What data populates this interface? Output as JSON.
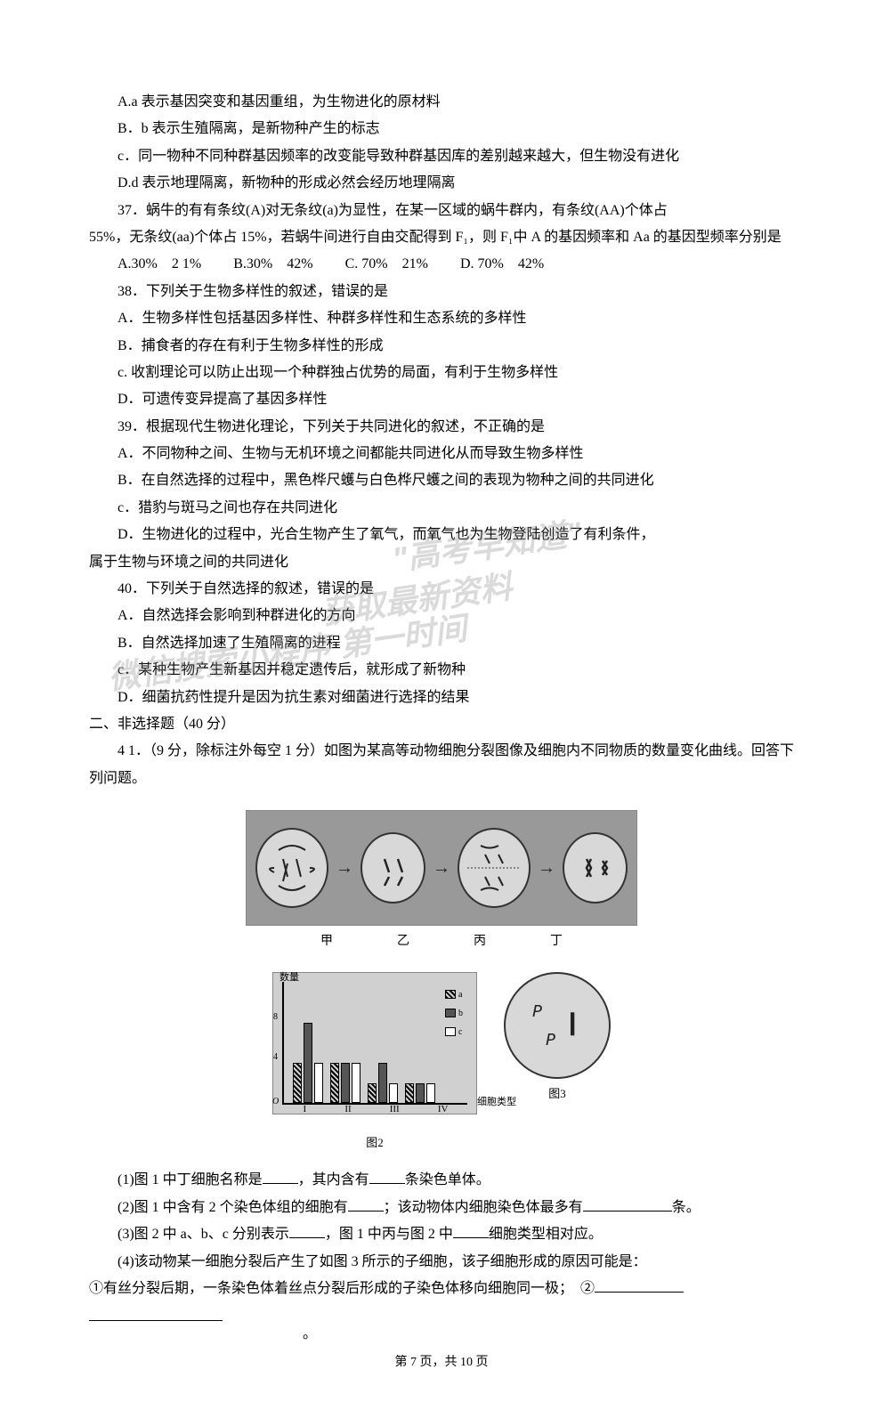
{
  "q36": {
    "optA": "A.a 表示基因突变和基因重组，为生物进化的原材料",
    "optB": "B．b 表示生殖隔离，是新物种产生的标志",
    "optC": "c．同一物种不同种群基因频率的改变能导致种群基因库的差别越来越大，但生物没有进化",
    "optD": "D.d 表示地理隔离，新物种的形成必然会经历地理隔离"
  },
  "q37": {
    "stem1": "37．蜗牛的有有条纹(A)对无条纹(a)为显性，在某一区域的蜗牛群内，有条纹(AA)个体占",
    "stem2": "55%，无条纹(aa)个体占 15%，若蜗牛间进行自由交配得到 F₁，则 F₁中 A 的基因频率和 Aa 的基因型频率分别是",
    "optA": "A.30%　2 1%",
    "optB": "B.30%　42%",
    "optC": "C. 70%　21%",
    "optD": "D. 70%　42%"
  },
  "q38": {
    "stem": "38．下列关于生物多样性的叙述，错误的是",
    "optA": "A．生物多样性包括基因多样性、种群多样性和生态系统的多样性",
    "optB": "B．捕食者的存在有利于生物多样性的形成",
    "optC": "c. 收割理论可以防止出现一个种群独占优势的局面，有利于生物多样性",
    "optD": "D．可遗传变异提高了基因多样性"
  },
  "q39": {
    "stem": "39．根据现代生物进化理论，下列关于共同进化的叙述，不正确的是",
    "optA": "A．不同物种之间、生物与无机环境之间都能共同进化从而导致生物多样性",
    "optB": "B．在自然选择的过程中，黑色桦尺蠖与白色桦尺蠖之间的表现为物种之间的共同进化",
    "optC": "c．猎豹与斑马之间也存在共同进化",
    "optD": "D．生物进化的过程中，光合生物产生了氧气，而氧气也为生物登陆创造了有利条件，",
    "optD2": "属于生物与环境之间的共同进化"
  },
  "q40": {
    "stem": "40．下列关于自然选择的叙述，错误的是",
    "optA": "A．自然选择会影响到种群进化的方向",
    "optB": "B．自然选择加速了生殖隔离的进程",
    "optC": "c．某种生物产生新基因并稳定遗传后，就形成了新物种",
    "optD": "D．细菌抗药性提升是因为抗生素对细菌进行选择的结果"
  },
  "section2": "二、非选择题（40 分）",
  "q41": {
    "stem1": "4 1．（9 分，除标注外每空 1 分）如图为某高等动物细胞分裂图像及细胞内不同物质的数量变化曲线。回答下列问题。",
    "cells": {
      "jia": "甲",
      "yi": "乙",
      "bing": "丙",
      "ding": "丁"
    },
    "chart": {
      "ylabel": "数量",
      "ytick8": "8",
      "ytick4": "4",
      "ytick0": "O",
      "xlabels": [
        "I",
        "II",
        "III",
        "IV"
      ],
      "xaxis": "细胞类型",
      "legend": {
        "a": "a",
        "b": "b",
        "c": "c"
      },
      "figlabel": "图2",
      "bars": {
        "I": {
          "a": 45,
          "b": 90,
          "c": 45
        },
        "II": {
          "a": 45,
          "b": 45,
          "c": 45
        },
        "III": {
          "a": 22,
          "b": 45,
          "c": 22
        },
        "IV": {
          "a": 22,
          "b": 22,
          "c": 22
        }
      }
    },
    "fig3": "图3",
    "sub1a": "(1)图 1 中丁细胞名称是",
    "sub1b": "，其内含有",
    "sub1c": "条染色单体。",
    "sub2a": "(2)图 1 中含有 2 个染色体组的细胞有",
    "sub2b": "；该动物体内细胞染色体最多有",
    "sub2c": "条。",
    "sub3a": "(3)图 2 中 a、b、c 分别表示",
    "sub3b": "，图 1 中丙与图 2 中",
    "sub3c": "细胞类型相对应。",
    "sub4a": "(4)该动物某一细胞分裂后产生了如图 3 所示的子细胞，该子细胞形成的原因可能是：",
    "sub4b": "①有丝分裂后期，一条染色体着丝点分裂后形成的子染色体移向细胞同一极；　②",
    "period": "。"
  },
  "watermarks": {
    "w1": "\"高考早知道\"",
    "w2": "获取最新资料",
    "w3": "微信搜索小程序 第一时间"
  },
  "footer": "第 7 页，共 10 页"
}
